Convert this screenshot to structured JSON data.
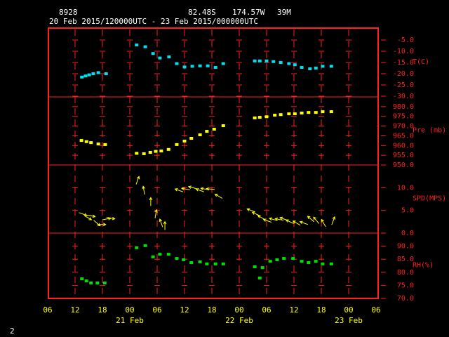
{
  "header": {
    "station": "8928",
    "lat": "82.48S",
    "lon": "174.57W",
    "elev": "39M",
    "period": "20 Feb 2015/120000UTC - 23 Feb 2015/000000UTC",
    "page": "2"
  },
  "chart_data": [
    {
      "type": "scatter",
      "y_label": "T(C)",
      "color": "#00e0f0",
      "ylim": [
        -30,
        0
      ],
      "yticks": [
        {
          "value": -5,
          "label": "-5.0"
        },
        {
          "value": -10,
          "label": "-10.0"
        },
        {
          "value": -15,
          "label": "-15.0"
        },
        {
          "value": -20,
          "label": "-20.0"
        },
        {
          "value": -25,
          "label": "-25.0"
        },
        {
          "value": -30,
          "label": "-30.0"
        }
      ],
      "x": [
        13.5,
        14.3,
        15.1,
        16,
        17.1,
        18.8,
        25.5,
        27.4,
        29.1,
        30.6,
        32.6,
        34.3,
        36,
        37.7,
        39.4,
        41.1,
        42.8,
        44.5,
        51.4,
        52.5,
        54,
        55.5,
        57.1,
        58.9,
        60.2,
        61.7,
        63.5,
        64.8,
        66.3,
        68.2
      ],
      "values": [
        -21.5,
        -21,
        -20.5,
        -20,
        -19.5,
        -20,
        -7.2,
        -8,
        -11,
        -13,
        -12.5,
        -15.5,
        -17,
        -16.7,
        -16.5,
        -16.5,
        -17.2,
        -15.5,
        -14.3,
        -14.3,
        -14.3,
        -14.6,
        -15,
        -15.5,
        -16,
        -17.2,
        -17.8,
        -17.5,
        -16.7,
        -16.7
      ]
    },
    {
      "type": "scatter",
      "y_label": "Pre (mb)",
      "color": "#ffff00",
      "ylim": [
        950,
        985
      ],
      "yticks": [
        {
          "value": 950,
          "label": "950.0"
        },
        {
          "value": 955,
          "label": "955.0"
        },
        {
          "value": 960,
          "label": "960.0"
        },
        {
          "value": 965,
          "label": "965.0"
        },
        {
          "value": 970,
          "label": "970.0"
        },
        {
          "value": 975,
          "label": "975.0"
        },
        {
          "value": 980,
          "label": "980.0"
        }
      ],
      "x": [
        13.4,
        14.5,
        15.5,
        17.1,
        18.6,
        25.5,
        27.1,
        28.5,
        29.7,
        30.9,
        32.5,
        34.3,
        36,
        37.5,
        39.4,
        40.9,
        42.5,
        44.5,
        51.4,
        52.5,
        54,
        55.8,
        57.1,
        58.9,
        60.2,
        61.7,
        63.2,
        64.8,
        66.3,
        68.2
      ],
      "values": [
        962.6,
        962,
        961.5,
        960.8,
        960.5,
        956,
        955.8,
        956.5,
        957,
        957.2,
        958,
        960.5,
        962.3,
        963.7,
        965.5,
        967.3,
        968.4,
        970.2,
        974.2,
        974.5,
        974.8,
        975.6,
        975.9,
        976.3,
        976.3,
        976.7,
        977,
        977,
        977.4,
        977.4
      ]
    },
    {
      "type": "quiver",
      "y_label": "SPD(MPS)",
      "color": "#ffff00",
      "ylim": [
        0,
        15
      ],
      "yticks": [
        {
          "value": 0,
          "label": "0.0"
        },
        {
          "value": 5,
          "label": "5.0"
        },
        {
          "value": 10,
          "label": "10.0"
        }
      ],
      "x": [
        13.7,
        14.8,
        15.5,
        16.8,
        17.8,
        18.9,
        19.8,
        25.7,
        27.1,
        28.6,
        29.7,
        30.9,
        31.7,
        34.8,
        36.3,
        37.8,
        39.4,
        40.5,
        41.7,
        43.5,
        50.6,
        51.7,
        52.9,
        54.2,
        55.5,
        56.8,
        57.8,
        59.1,
        60.6,
        62.2,
        63.7,
        64.9,
        66.5,
        68.6
      ],
      "values": [
        4.2,
        3.4,
        3.8,
        2.2,
        1.9,
        3.1,
        3.3,
        11.6,
        9.4,
        6.9,
        4.2,
        2.2,
        1.6,
        9.4,
        9.7,
        10,
        9.4,
        9.7,
        9.7,
        8.1,
        5,
        4.2,
        3.4,
        2.7,
        3,
        3,
        3.1,
        2.5,
        2.2,
        2.2,
        3.1,
        2.8,
        2.2,
        2.7
      ],
      "directions": [
        110,
        120,
        100,
        130,
        90,
        80,
        100,
        20,
        350,
        0,
        10,
        340,
        0,
        290,
        280,
        285,
        290,
        280,
        275,
        300,
        290,
        295,
        300,
        290,
        285,
        280,
        290,
        295,
        300,
        290,
        310,
        320,
        330,
        20
      ]
    },
    {
      "type": "scatter",
      "y_label": "RH(%)",
      "color": "#00e000",
      "ylim": [
        70,
        95
      ],
      "yticks": [
        {
          "value": 70,
          "label": "70.0"
        },
        {
          "value": 75,
          "label": "75.0"
        },
        {
          "value": 80,
          "label": "80.0"
        },
        {
          "value": 85,
          "label": "85.0"
        },
        {
          "value": 90,
          "label": "90.0"
        }
      ],
      "x": [
        13.5,
        14.5,
        15.5,
        16.9,
        18.5,
        25.5,
        27.4,
        29.1,
        30.6,
        32.5,
        34.3,
        35.8,
        37.5,
        39.4,
        40.9,
        42.8,
        44.5,
        51.4,
        52.5,
        53.1,
        54.8,
        56.3,
        57.8,
        59.8,
        61.7,
        63.2,
        64.8,
        66.3,
        68.2
      ],
      "values": [
        77.5,
        76.7,
        75.9,
        75.9,
        75.9,
        89.4,
        90.2,
        85.9,
        86.9,
        86.9,
        85.3,
        84.8,
        83.7,
        84,
        83.2,
        83.2,
        83.2,
        82.1,
        77.8,
        81.8,
        84.2,
        84.8,
        85.3,
        85.3,
        84.2,
        83.7,
        84.2,
        83.2,
        83.2
      ],
      "xlim": [
        6,
        78
      ],
      "xticks": [
        {
          "value": 6,
          "label": "06"
        },
        {
          "value": 12,
          "label": "12"
        },
        {
          "value": 18,
          "label": "18"
        },
        {
          "value": 24,
          "label": "00"
        },
        {
          "value": 30,
          "label": "06"
        },
        {
          "value": 36,
          "label": "12"
        },
        {
          "value": 42,
          "label": "18"
        },
        {
          "value": 48,
          "label": "00"
        },
        {
          "value": 54,
          "label": "06"
        },
        {
          "value": 60,
          "label": "12"
        },
        {
          "value": 66,
          "label": "18"
        },
        {
          "value": 72,
          "label": "00"
        },
        {
          "value": 78,
          "label": "06"
        }
      ],
      "day_labels": [
        {
          "value": 24,
          "label": "21 Feb"
        },
        {
          "value": 48,
          "label": "22 Feb"
        },
        {
          "value": 72,
          "label": "23 Feb"
        }
      ]
    }
  ]
}
